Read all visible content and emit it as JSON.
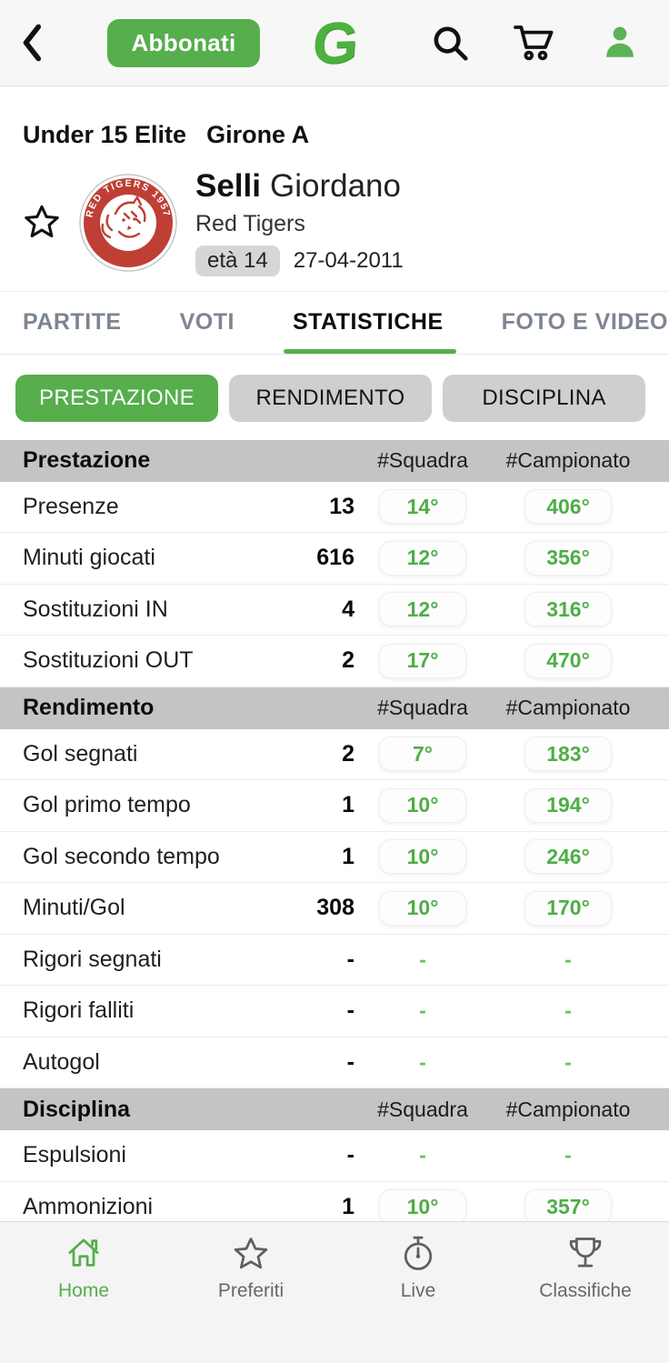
{
  "colors": {
    "accent_green": "#56ae4c",
    "rank_text_green": "#4fae48",
    "section_header_bg": "#c4c4c4",
    "inactive_chip_gray": "#cfcfcf",
    "team_badge_red": "#bf3f35"
  },
  "icons": [
    "chevron-left",
    "search",
    "shopping-cart",
    "profile",
    "star-outline",
    "home",
    "stopwatch",
    "trophy"
  ],
  "header": {
    "subscribe_button": "Abbonati",
    "logo_letter": "G"
  },
  "competition": {
    "title": "Under 15 Elite",
    "group": "Girone A"
  },
  "player": {
    "last_name": "Selli",
    "first_name": "Giordano",
    "team": "Red Tigers",
    "age_label": "età 14",
    "birth_date": "27-04-2011",
    "badge": {
      "ring_text": "RED TIGERS 1957",
      "bottom_text": "ROMA"
    }
  },
  "tabs": [
    {
      "label": "PARTITE",
      "active": false
    },
    {
      "label": "VOTI",
      "active": false
    },
    {
      "label": "STATISTICHE",
      "active": true
    },
    {
      "label": "FOTO E VIDEO",
      "active": false
    }
  ],
  "filters": [
    {
      "label": "PRESTAZIONE",
      "active": true
    },
    {
      "label": "RENDIMENTO",
      "active": false
    },
    {
      "label": "DISCIPLINA",
      "active": false
    }
  ],
  "stats_table": {
    "col_headers": [
      "#Squadra",
      "#Campionato"
    ],
    "sections": [
      {
        "title": "Prestazione",
        "rows": [
          {
            "label": "Presenze",
            "value": "13",
            "team_rank": "14°",
            "league_rank": "406°"
          },
          {
            "label": "Minuti giocati",
            "value": "616",
            "team_rank": "12°",
            "league_rank": "356°"
          },
          {
            "label": "Sostituzioni IN",
            "value": "4",
            "team_rank": "12°",
            "league_rank": "316°"
          },
          {
            "label": "Sostituzioni OUT",
            "value": "2",
            "team_rank": "17°",
            "league_rank": "470°"
          }
        ]
      },
      {
        "title": "Rendimento",
        "rows": [
          {
            "label": "Gol segnati",
            "value": "2",
            "team_rank": "7°",
            "league_rank": "183°"
          },
          {
            "label": "Gol primo tempo",
            "value": "1",
            "team_rank": "10°",
            "league_rank": "194°"
          },
          {
            "label": "Gol secondo tempo",
            "value": "1",
            "team_rank": "10°",
            "league_rank": "246°"
          },
          {
            "label": "Minuti/Gol",
            "value": "308",
            "team_rank": "10°",
            "league_rank": "170°"
          },
          {
            "label": "Rigori segnati",
            "value": "-",
            "team_rank": "-",
            "league_rank": "-"
          },
          {
            "label": "Rigori falliti",
            "value": "-",
            "team_rank": "-",
            "league_rank": "-"
          },
          {
            "label": "Autogol",
            "value": "-",
            "team_rank": "-",
            "league_rank": "-"
          }
        ]
      },
      {
        "title": "Disciplina",
        "rows": [
          {
            "label": "Espulsioni",
            "value": "-",
            "team_rank": "-",
            "league_rank": "-"
          },
          {
            "label": "Ammonizioni",
            "value": "1",
            "team_rank": "10°",
            "league_rank": "357°"
          }
        ]
      }
    ]
  },
  "bottom_nav": {
    "items": [
      {
        "label": "Home",
        "active": true
      },
      {
        "label": "Preferiti",
        "active": false
      },
      {
        "label": "Live",
        "active": false
      },
      {
        "label": "Classifiche",
        "active": false
      }
    ]
  }
}
